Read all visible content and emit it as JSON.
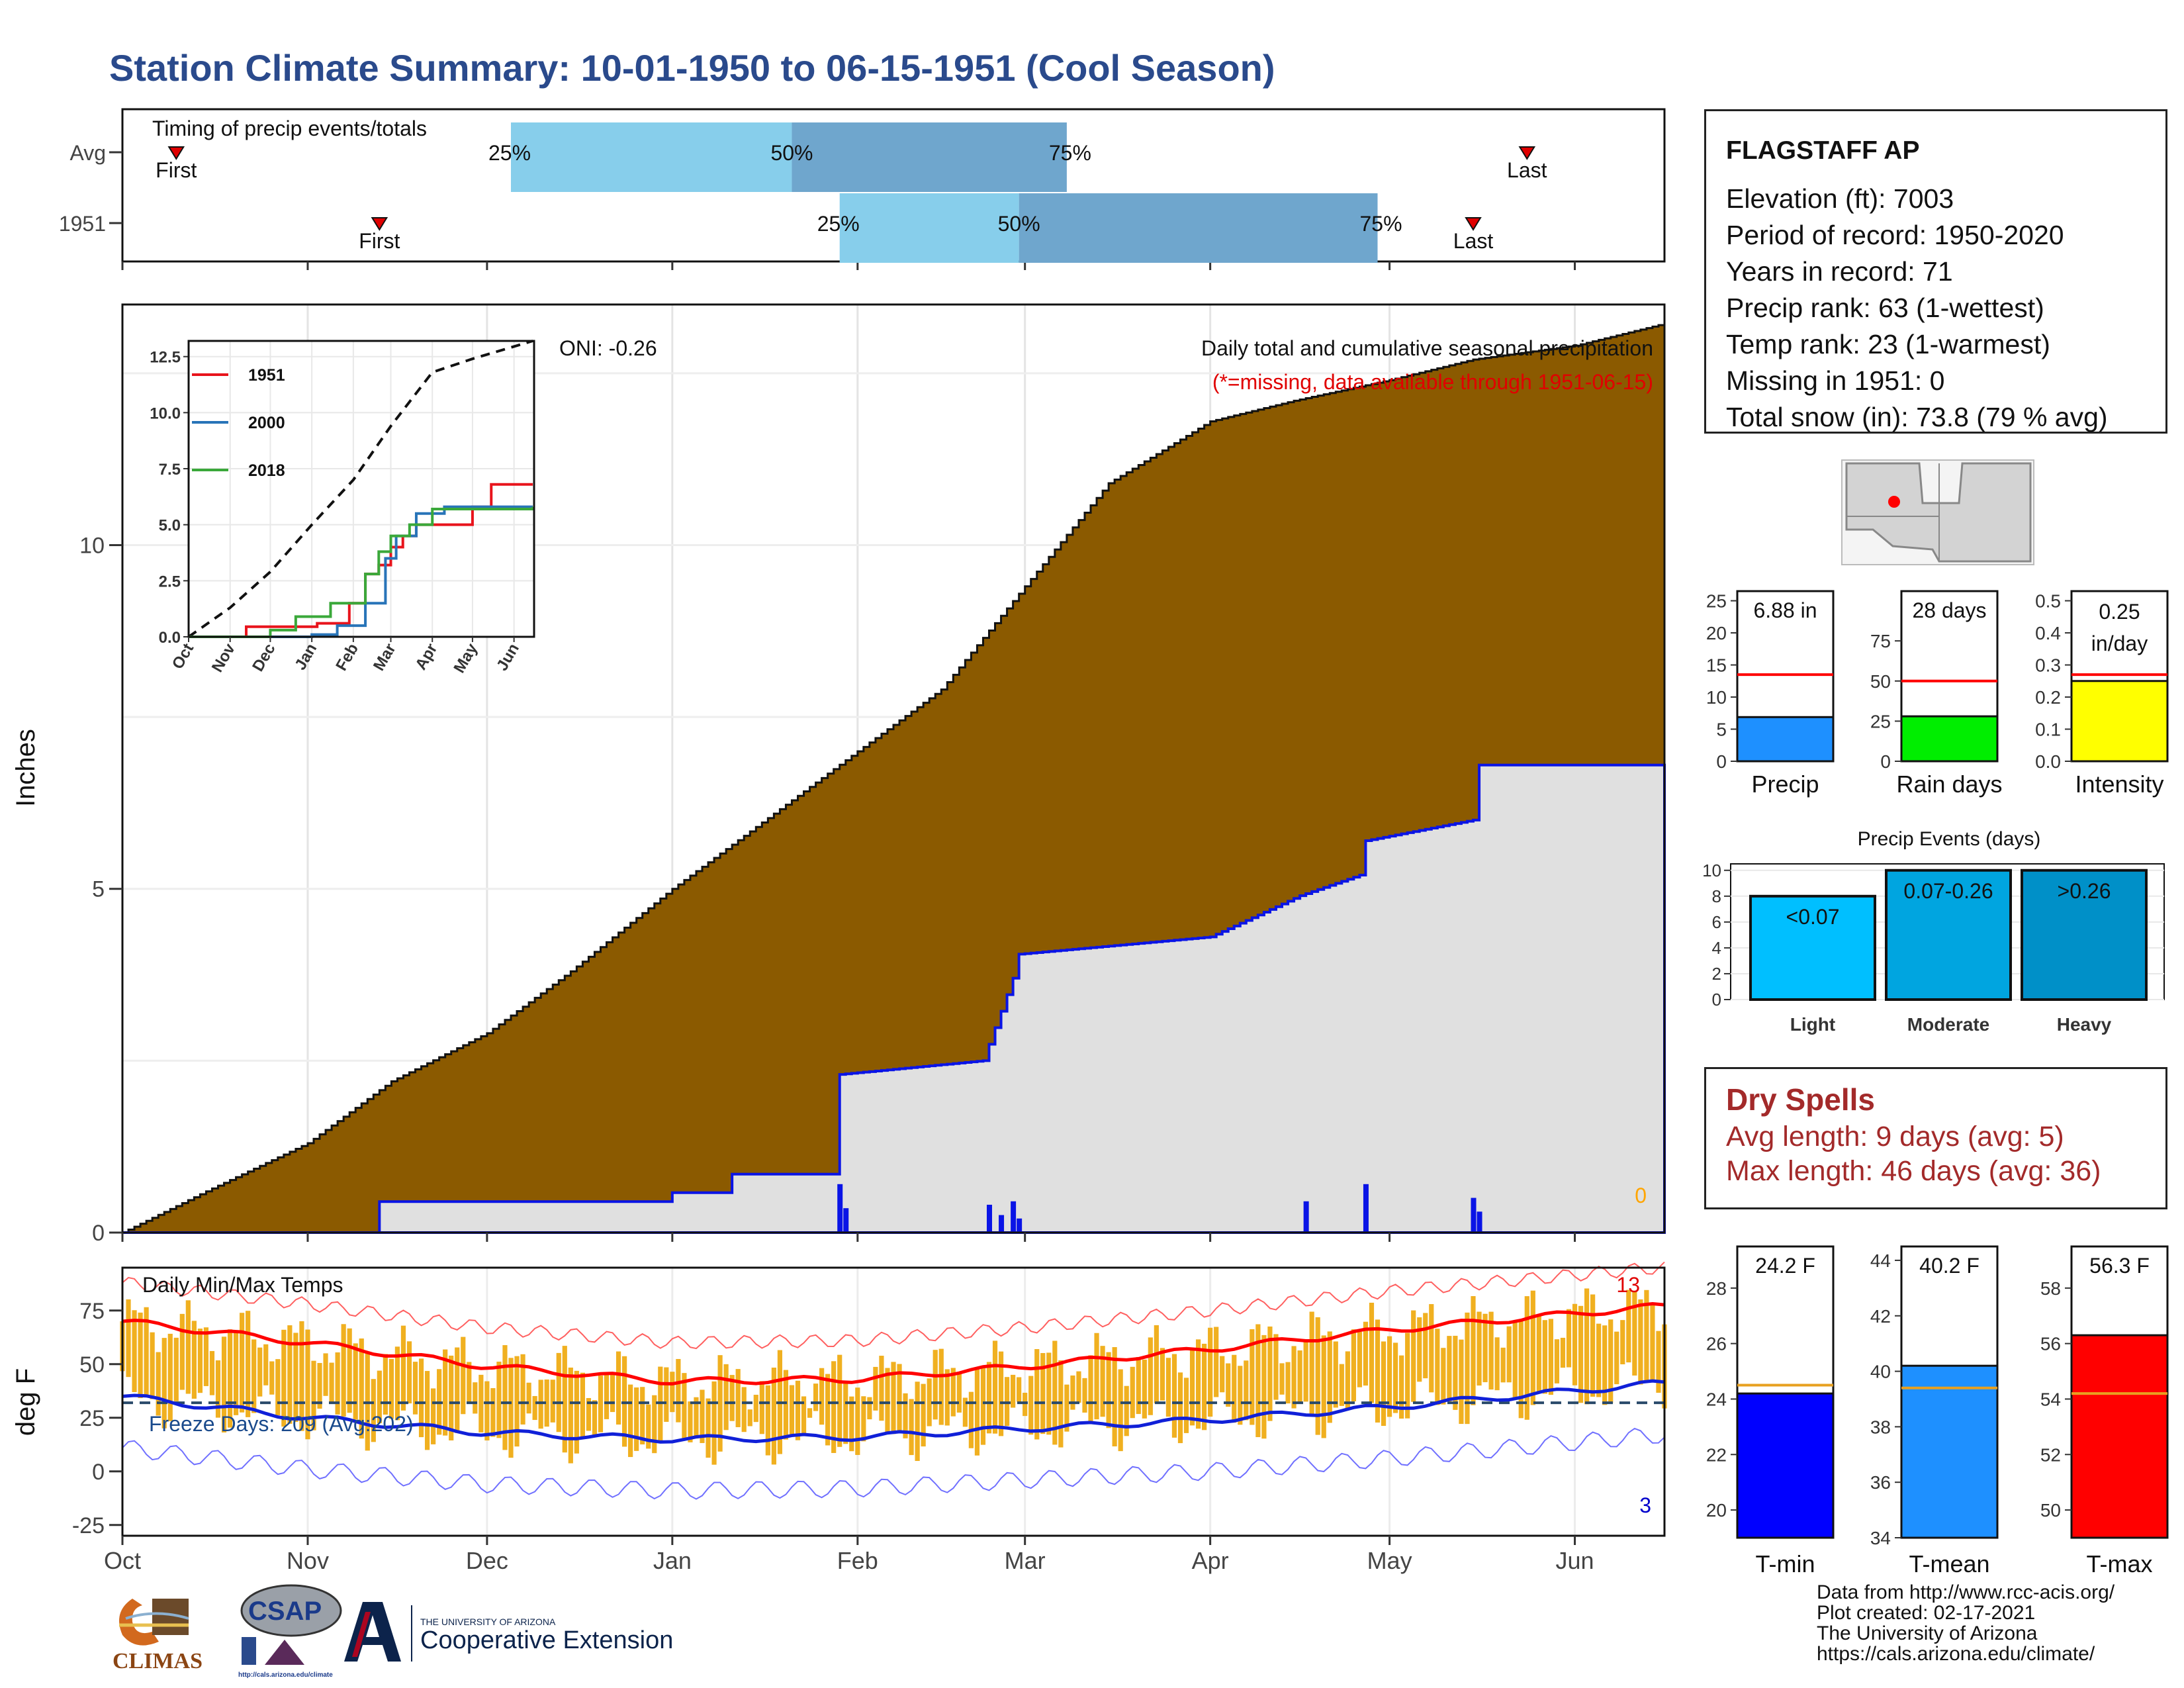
{
  "title": "Station Climate Summary: 10-01-1950 to 06-15-1951 (Cool Season)",
  "station": {
    "name": "FLAGSTAFF AP",
    "lines": [
      "Elevation (ft): 7003",
      "Period of record: 1950-2020",
      "Years in record: 71",
      "Precip rank: 63 (1-wettest)",
      "Temp rank: 23 (1-warmest)",
      "Missing in 1951: 0",
      "Total snow (in): 73.8 (79 % avg)"
    ]
  },
  "dry_spells": {
    "title": "Dry Spells",
    "avg_line": "Avg length: 9 days (avg: 5)",
    "max_line": "Max length: 46 days (avg: 36)"
  },
  "credits": [
    "Data from http://www.rcc-acis.org/",
    "Plot created: 02-17-2021",
    "The University of Arizona",
    "https://cals.arizona.edu/climate/"
  ],
  "logos": {
    "climas": "CLIMAS",
    "csap": "CSAP",
    "csap_url": "http://cals.arizona.edu/climate",
    "ua_small": "THE UNIVERSITY OF ARIZONA",
    "ua_large": "Cooperative Extension"
  },
  "colors": {
    "cumulative_avg_fill": "#8b5a00",
    "cumulative_year_fill": "#e0e0e0",
    "year_line": "#0a14e6",
    "temp_bars": "#f0b020",
    "tmax_avg": "#ff0000",
    "tmin_avg": "#1020d8",
    "quartile_light": "#87ceeb",
    "quartile_dark": "#6fa6cd"
  },
  "chart_data": [
    {
      "type": "timeline",
      "title": "Timing of precip events/totals",
      "rows": [
        {
          "label": "Avg",
          "first": "Oct 10",
          "q25": "Dec 5",
          "q50": "Jan 21",
          "q75": "Mar 8",
          "last": "May 24",
          "first_label": "First",
          "last_label": "Last",
          "q25_label": "25%",
          "q50_label": "50%",
          "q75_label": "75%"
        },
        {
          "label": "1951",
          "first": "Nov 13",
          "q25": "Jan 29",
          "q50": "Feb 28",
          "q75": "Apr 29",
          "last": "May 15",
          "first_label": "First",
          "last_label": "Last",
          "q25_label": "25%",
          "q50_label": "50%",
          "q75_label": "75%"
        }
      ]
    },
    {
      "type": "area",
      "title": "Daily total and cumulative seasonal precipitation",
      "subtitle": "(*=missing, data available through 1951-06-15)",
      "annotation": "ONI: -0.26",
      "ylabel": "Inches",
      "ylim": [
        0,
        13.5
      ],
      "y_ticks": [
        0,
        5,
        10
      ],
      "x_ticks": [
        "Oct",
        "Nov",
        "Dec",
        "Jan",
        "Feb",
        "Mar",
        "Apr",
        "May",
        "Jun"
      ],
      "missing_count_label": "0",
      "avg_cumulative": {
        "x": [
          "Oct 1",
          "Oct 15",
          "Nov 1",
          "Nov 15",
          "Dec 1",
          "Dec 15",
          "Jan 1",
          "Jan 15",
          "Feb 1",
          "Feb 15",
          "Mar 1",
          "Mar 15",
          "Apr 1",
          "Apr 15",
          "May 1",
          "May 15",
          "Jun 1",
          "Jun 15"
        ],
        "y": [
          0.0,
          0.6,
          1.3,
          2.2,
          2.9,
          3.8,
          5.0,
          5.9,
          7.0,
          7.9,
          9.4,
          10.9,
          11.8,
          12.1,
          12.4,
          12.7,
          12.9,
          13.2
        ]
      },
      "year_cumulative": {
        "x": [
          "Oct 1",
          "Nov 12",
          "Nov 13",
          "Dec 31",
          "Jan 1",
          "Jan 10",
          "Jan 11",
          "Jan 28",
          "Jan 29",
          "Feb 22",
          "Feb 27",
          "Feb 28",
          "Apr 1",
          "Apr 16",
          "Apr 26",
          "Apr 27",
          "May 15",
          "May 16",
          "Jun 15"
        ],
        "y": [
          0.0,
          0.0,
          0.45,
          0.45,
          0.58,
          0.58,
          0.85,
          0.85,
          2.3,
          2.5,
          3.7,
          4.05,
          4.3,
          4.9,
          5.2,
          5.7,
          6.0,
          6.8,
          6.8
        ]
      },
      "daily_precip": {
        "x": [
          "Jan 29",
          "Jan 30",
          "Feb 23",
          "Feb 25",
          "Feb 27",
          "Feb 28",
          "Apr 17",
          "Apr 27",
          "May 15",
          "May 16"
        ],
        "y": [
          0.7,
          0.35,
          0.4,
          0.25,
          0.45,
          0.2,
          0.45,
          0.7,
          0.5,
          0.3
        ]
      },
      "inset": {
        "type": "line",
        "y_ticks": [
          "0.0",
          "2.5",
          "5.0",
          "7.5",
          "10.0",
          "12.5"
        ],
        "x_ticks": [
          "Oct",
          "Nov",
          "Dec",
          "Jan",
          "Feb",
          "Mar",
          "Apr",
          "May",
          "Jun"
        ],
        "series": [
          {
            "name": "1951",
            "color": "#e8141c",
            "x": [
              "Oct 1",
              "Nov 13",
              "Jan 5",
              "Jan 29",
              "Feb 10",
              "Feb 20",
              "Mar 1",
              "Mar 10",
              "Mar 20",
              "May 1",
              "May 15",
              "Jun 15"
            ],
            "y": [
              0,
              0.45,
              0.6,
              1.5,
              2.8,
              3.2,
              4.0,
              4.5,
              5.0,
              5.8,
              6.8,
              6.8
            ]
          },
          {
            "name": "2000",
            "color": "#2874b8",
            "x": [
              "Oct 1",
              "Jan 1",
              "Jan 20",
              "Feb 10",
              "Feb 25",
              "Mar 5",
              "Mar 20",
              "Apr 10",
              "Jun 15"
            ],
            "y": [
              0,
              0.1,
              0.5,
              1.5,
              3.5,
              4.5,
              5.5,
              5.8,
              5.8
            ]
          },
          {
            "name": "2018",
            "color": "#3aa83a",
            "x": [
              "Oct 1",
              "Dec 1",
              "Dec 20",
              "Jan 15",
              "Feb 10",
              "Feb 20",
              "Mar 1",
              "Mar 15",
              "Apr 1",
              "Jun 15"
            ],
            "y": [
              0,
              0.3,
              0.9,
              1.5,
              2.8,
              3.8,
              4.5,
              5.0,
              5.7,
              5.8
            ]
          }
        ],
        "avg_dashed": {
          "x": [
            "Oct 1",
            "Nov 1",
            "Dec 1",
            "Jan 1",
            "Feb 1",
            "Mar 1",
            "Apr 1",
            "May 1",
            "Jun 15"
          ],
          "y": [
            0,
            1.3,
            2.9,
            5.0,
            7.0,
            9.4,
            11.8,
            12.4,
            13.2
          ]
        }
      }
    },
    {
      "type": "bar",
      "title": "Daily Min/Max Temps",
      "ylabel": "deg F",
      "ylim": [
        -30,
        95
      ],
      "y_ticks": [
        -25,
        0,
        25,
        50,
        75
      ],
      "x_ticks": [
        "Oct",
        "Nov",
        "Dec",
        "Jan",
        "Feb",
        "Mar",
        "Apr",
        "May",
        "Jun"
      ],
      "freeze_label": "Freeze Days: 209 (Avg:202)",
      "freeze_line": 32,
      "record_high_count": "13",
      "record_low_count": "3",
      "tmax_avg": {
        "x": [
          "Oct 1",
          "Nov 1",
          "Dec 1",
          "Jan 1",
          "Feb 1",
          "Mar 1",
          "Apr 1",
          "May 1",
          "Jun 15"
        ],
        "y": [
          70,
          60,
          49,
          42,
          43,
          49,
          57,
          66,
          77
        ]
      },
      "tmin_avg": {
        "x": [
          "Oct 1",
          "Nov 1",
          "Dec 1",
          "Jan 1",
          "Feb 1",
          "Mar 1",
          "Apr 1",
          "May 1",
          "Jun 15"
        ],
        "y": [
          35,
          25,
          18,
          15,
          16,
          20,
          24,
          30,
          41
        ]
      }
    },
    {
      "type": "bar",
      "title": "Precip",
      "value_label": "6.88 in",
      "value": 6.88,
      "avg": 13.5,
      "ylim": [
        0,
        26.5
      ],
      "y_ticks": [
        0,
        5,
        10,
        15,
        20,
        25
      ],
      "color": "#1e90ff"
    },
    {
      "type": "bar",
      "title": "Rain days",
      "value_label": "28 days",
      "value": 28,
      "avg": 50,
      "ylim": [
        0,
        106
      ],
      "y_ticks": [
        0,
        25,
        50,
        75
      ],
      "color": "#00ee00"
    },
    {
      "type": "bar",
      "title": "Intensity",
      "value_label_1": "0.25",
      "value_label_2": "in/day",
      "value": 0.25,
      "avg": 0.27,
      "ylim": [
        0,
        0.53
      ],
      "y_ticks": [
        "0.0",
        "0.1",
        "0.2",
        "0.3",
        "0.4",
        "0.5"
      ],
      "color": "#ffff00"
    },
    {
      "type": "bar",
      "title": "Precip Events (days)",
      "categories": [
        "Light",
        "Moderate",
        "Heavy"
      ],
      "value_labels": [
        "<0.07",
        "0.07-0.26",
        ">0.26"
      ],
      "values": [
        8,
        10,
        10
      ],
      "ylim": [
        0,
        10.5
      ],
      "y_ticks": [
        0,
        2,
        4,
        6,
        8,
        10
      ],
      "colors": [
        "#00bfff",
        "#00a5e0",
        "#0090c8"
      ]
    },
    {
      "type": "bar",
      "title": "T-min",
      "value_label": "24.2 F",
      "value": 24.2,
      "avg": 24.5,
      "ylim": [
        19,
        29.5
      ],
      "y_ticks": [
        20,
        22,
        24,
        26,
        28
      ],
      "color": "#0000ff"
    },
    {
      "type": "bar",
      "title": "T-mean",
      "value_label": "40.2 F",
      "value": 40.2,
      "avg": 39.4,
      "ylim": [
        34,
        44.5
      ],
      "y_ticks": [
        34,
        36,
        38,
        40,
        42,
        44
      ],
      "color": "#1e90ff"
    },
    {
      "type": "bar",
      "title": "T-max",
      "value_label": "56.3 F",
      "value": 56.3,
      "avg": 54.2,
      "ylim": [
        49,
        59.5
      ],
      "y_ticks": [
        50,
        52,
        54,
        56,
        58
      ],
      "color": "#ff0000"
    }
  ]
}
